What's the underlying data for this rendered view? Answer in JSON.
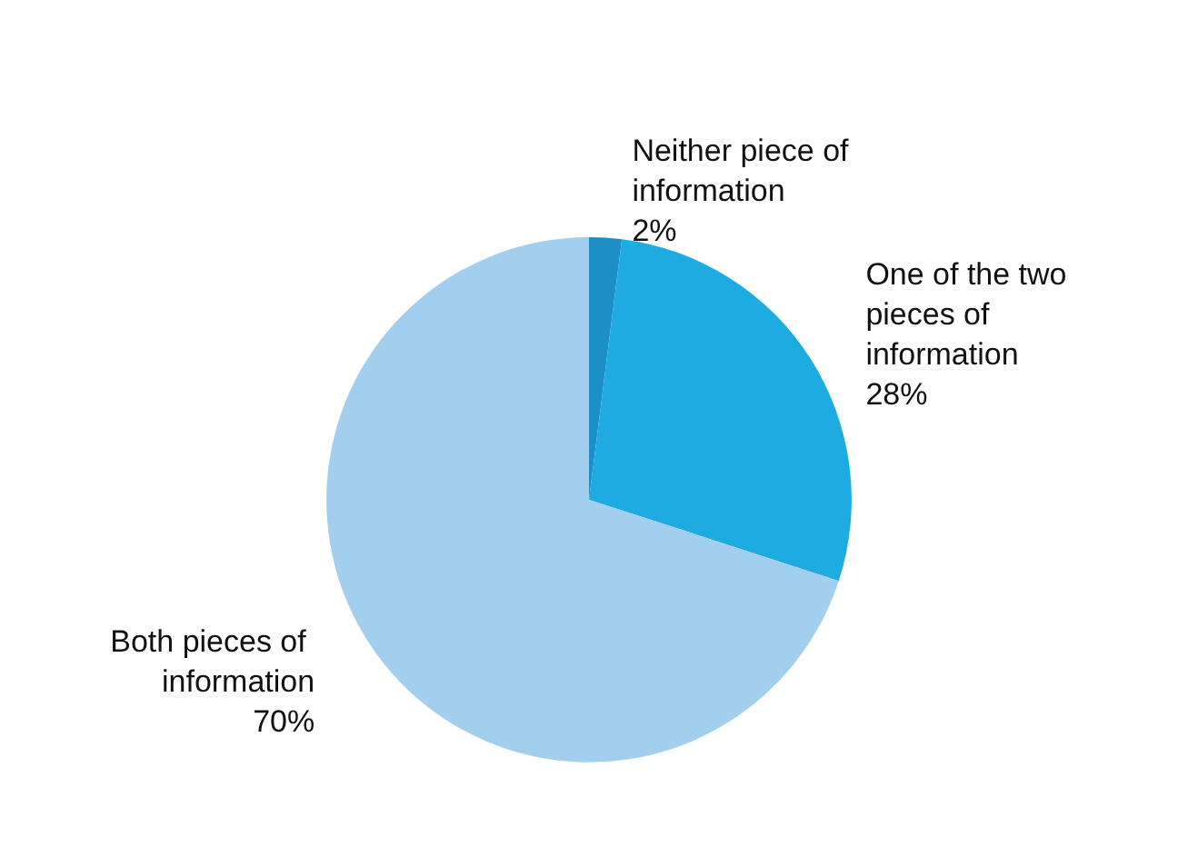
{
  "chart_data": {
    "type": "pie",
    "categories": [
      "Neither piece of information",
      "One of the two pieces of information",
      "Both pieces of information"
    ],
    "values": [
      2,
      28,
      70
    ],
    "value_labels": [
      "2%",
      "28%",
      "70%"
    ],
    "colors": [
      "#1b8fc6",
      "#1eabe2",
      "#a3cfee"
    ],
    "legend": false
  }
}
